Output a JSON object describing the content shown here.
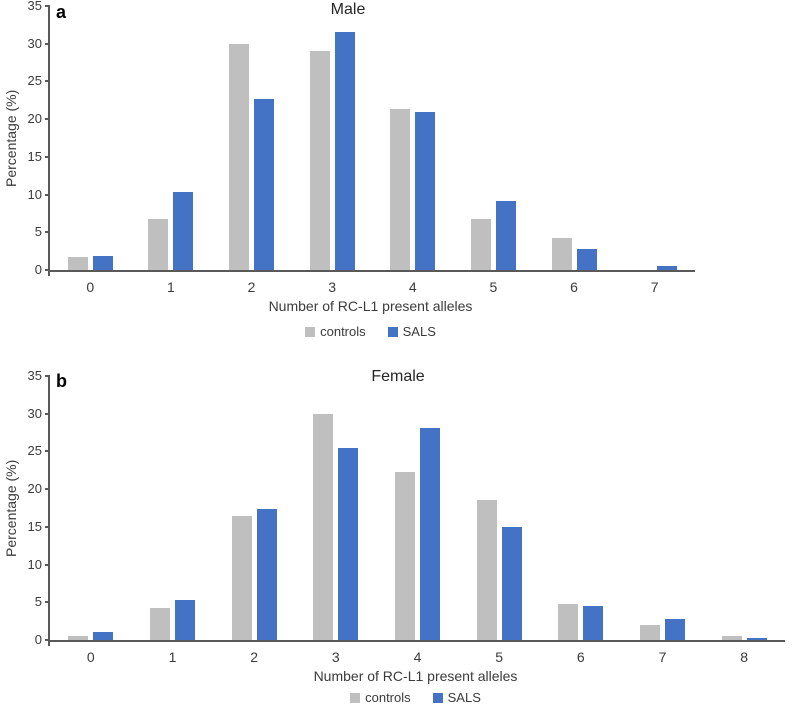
{
  "colors": {
    "controls": "#BFBFBF",
    "sals": "#4472C4",
    "axis": "#595959",
    "text": "#3B3B3B"
  },
  "chart_data": [
    {
      "type": "bar",
      "panel_label": "a",
      "title": "Male",
      "xlabel": "Number of RC-L1 present alleles",
      "ylabel": "Percentage (%)",
      "ylim": [
        0,
        35
      ],
      "yticks": [
        0,
        5,
        10,
        15,
        20,
        25,
        30,
        35
      ],
      "grid": false,
      "legend_position": "bottom",
      "categories": [
        "0",
        "1",
        "2",
        "3",
        "4",
        "5",
        "6",
        "7"
      ],
      "series": [
        {
          "name": "controls",
          "values": [
            1.7,
            6.8,
            29.9,
            29.1,
            21.4,
            6.8,
            4.3,
            0
          ]
        },
        {
          "name": "SALS",
          "values": [
            1.8,
            10.3,
            22.7,
            31.6,
            20.9,
            9.2,
            2.8,
            0.5
          ]
        }
      ]
    },
    {
      "type": "bar",
      "panel_label": "b",
      "title": "Female",
      "xlabel": "Number of RC-L1 present alleles",
      "ylabel": "Percentage (%)",
      "ylim": [
        0,
        35
      ],
      "yticks": [
        0,
        5,
        10,
        15,
        20,
        25,
        30,
        35
      ],
      "grid": false,
      "legend_position": "bottom",
      "categories": [
        "0",
        "1",
        "2",
        "3",
        "4",
        "5",
        "6",
        "7",
        "8"
      ],
      "series": [
        {
          "name": "controls",
          "values": [
            0.5,
            4.3,
            16.5,
            29.9,
            22.3,
            18.6,
            4.8,
            2.0,
            0.5
          ]
        },
        {
          "name": "SALS",
          "values": [
            1.0,
            5.3,
            17.4,
            25.4,
            28.1,
            15.0,
            4.5,
            2.8,
            0.3
          ]
        }
      ]
    }
  ]
}
